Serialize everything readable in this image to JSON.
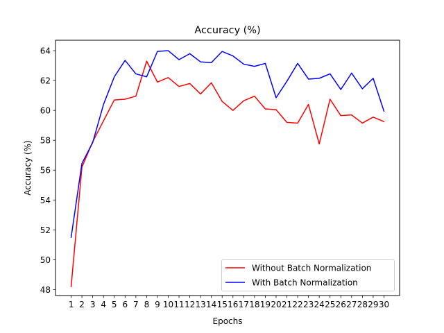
{
  "chart_data": {
    "type": "line",
    "title": "Accuracy (%)",
    "xlabel": "Epochs",
    "ylabel": "Accuracy (%)",
    "x": [
      1,
      2,
      3,
      4,
      5,
      6,
      7,
      8,
      9,
      10,
      11,
      12,
      13,
      14,
      15,
      16,
      17,
      18,
      19,
      20,
      21,
      22,
      23,
      24,
      25,
      26,
      27,
      28,
      29,
      30
    ],
    "xlim": [
      -0.45,
      31.45
    ],
    "ylim": [
      47.6,
      64.7
    ],
    "yticks": [
      48,
      50,
      52,
      54,
      56,
      58,
      60,
      62,
      64
    ],
    "grid": false,
    "legend_position": "lower-right",
    "series": [
      {
        "name": "Without Batch Normalization",
        "color": "#ff0000",
        "values": [
          48.2,
          56.2,
          57.9,
          59.3,
          60.7,
          60.75,
          60.95,
          63.3,
          61.9,
          62.2,
          61.6,
          61.8,
          61.1,
          61.85,
          60.6,
          60.0,
          60.65,
          60.95,
          60.1,
          60.05,
          59.2,
          59.15,
          60.4,
          57.75,
          60.75,
          59.65,
          59.7,
          59.15,
          59.55,
          59.25
        ]
      },
      {
        "name": "With Batch Normalization",
        "color": "#0000ff",
        "values": [
          51.5,
          56.45,
          57.85,
          60.4,
          62.25,
          63.35,
          62.45,
          62.25,
          63.95,
          64.0,
          63.4,
          63.8,
          63.25,
          63.2,
          63.95,
          63.65,
          63.1,
          62.95,
          63.15,
          60.85,
          61.95,
          63.15,
          62.1,
          62.15,
          62.45,
          61.4,
          62.5,
          61.45,
          62.15,
          59.95
        ]
      }
    ]
  }
}
